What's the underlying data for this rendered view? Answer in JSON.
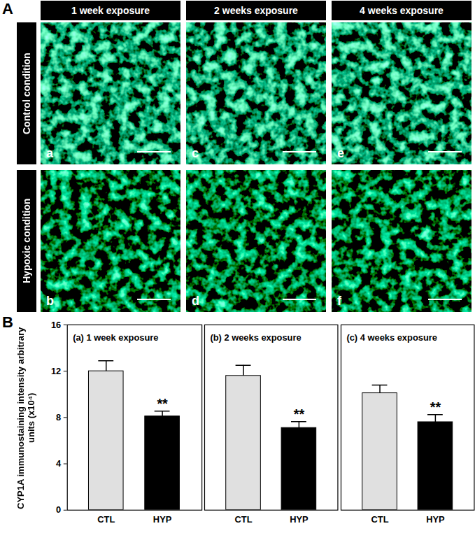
{
  "panel_a": {
    "label": "A",
    "columns": [
      "1 week exposure",
      "2 weeks exposure",
      "4 weeks exposure"
    ],
    "rows": [
      "Control condition",
      "Hypoxic condition"
    ],
    "image_labels": [
      [
        "a",
        "c",
        "e"
      ],
      [
        "b",
        "d",
        "f"
      ]
    ]
  },
  "panel_b": {
    "label": "B"
  },
  "chart_data": [
    {
      "type": "bar",
      "title": "(a) 1 week exposure",
      "categories": [
        "CTL",
        "HYP"
      ],
      "values": [
        12,
        8.1
      ],
      "errors": [
        0.9,
        0.45
      ],
      "significance": [
        null,
        "**"
      ],
      "colors": [
        "#e0e0e0",
        "#000000"
      ],
      "ylim": [
        0,
        16
      ],
      "yticks": [
        0,
        4,
        8,
        12,
        16
      ],
      "y_label": "CYP1A immunostaining intensity arbitrary units (x10⁴)"
    },
    {
      "type": "bar",
      "title": "(b) 2 weeks exposure",
      "categories": [
        "CTL",
        "HYP"
      ],
      "values": [
        11.6,
        7.1
      ],
      "errors": [
        0.9,
        0.55
      ],
      "significance": [
        null,
        "**"
      ],
      "colors": [
        "#e0e0e0",
        "#000000"
      ],
      "ylim": [
        0,
        16
      ],
      "yticks": [
        0,
        4,
        8,
        12,
        16
      ],
      "tick_labels": "x"
    },
    {
      "type": "bar",
      "title": "(c) 4 weeks exposure",
      "categories": [
        "CTL",
        "HYP"
      ],
      "values": [
        10.1,
        7.6
      ],
      "errors": [
        0.7,
        0.65
      ],
      "significance": [
        null,
        "**"
      ],
      "colors": [
        "#e0e0e0",
        "#000000"
      ],
      "ylim": [
        0,
        16
      ],
      "yticks": [
        0,
        4,
        8,
        12,
        16
      ],
      "tick_labels": "x"
    }
  ]
}
